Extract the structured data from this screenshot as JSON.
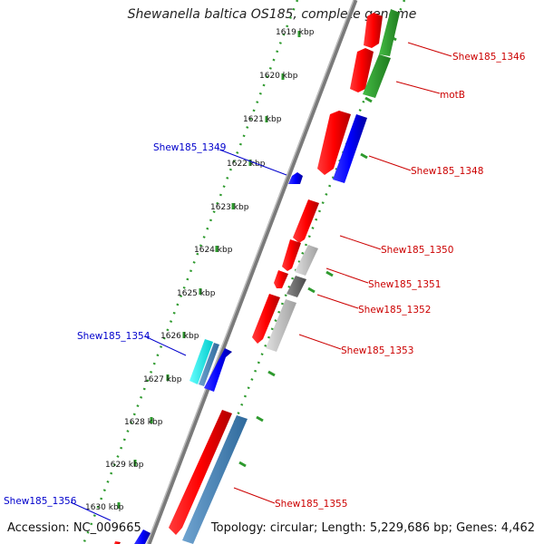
{
  "title": "Shewanella baltica OS185, complete genome",
  "footer": {
    "accession": "Accession: NC_009665",
    "summary": "Topology: circular; Length: 5,229,686 bp; Genes: 4,462"
  },
  "colors": {
    "backbone": "#7a7a7a",
    "dotted_track": "#2e9a2e",
    "label_red": "#cc0000",
    "label_blue": "#0000cc"
  },
  "kbp_ticks": [
    "1619 kbp",
    "1620 kbp",
    "1621 kbp",
    "1622 kbp",
    "1623 kbp",
    "1624 kbp",
    "1625 kbp",
    "1626 kbp",
    "1627 kbp",
    "1628 kbp",
    "1629 kbp",
    "1630 kbp"
  ],
  "gene_labels": [
    {
      "text": "Shew185_1346",
      "color": "red"
    },
    {
      "text": "motB",
      "color": "red"
    },
    {
      "text": "Shew185_1348",
      "color": "red"
    },
    {
      "text": "Shew185_1349",
      "color": "blue"
    },
    {
      "text": "Shew185_1350",
      "color": "red"
    },
    {
      "text": "Shew185_1351",
      "color": "red"
    },
    {
      "text": "Shew185_1352",
      "color": "red"
    },
    {
      "text": "Shew185_1353",
      "color": "red"
    },
    {
      "text": "Shew185_1354",
      "color": "blue"
    },
    {
      "text": "Shew185_1355",
      "color": "red"
    },
    {
      "text": "Shew185_1356",
      "color": "blue"
    }
  ]
}
